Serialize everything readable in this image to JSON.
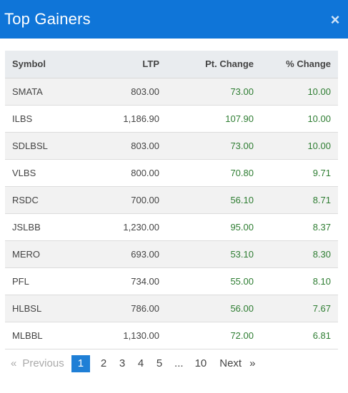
{
  "header": {
    "title": "Top Gainers",
    "close_glyph": "×"
  },
  "table": {
    "columns": [
      "Symbol",
      "LTP",
      "Pt. Change",
      "% Change"
    ],
    "rows": [
      {
        "symbol": "SMATA",
        "ltp": "803.00",
        "pt_change": "73.00",
        "pct_change": "10.00"
      },
      {
        "symbol": "ILBS",
        "ltp": "1,186.90",
        "pt_change": "107.90",
        "pct_change": "10.00"
      },
      {
        "symbol": "SDLBSL",
        "ltp": "803.00",
        "pt_change": "73.00",
        "pct_change": "10.00"
      },
      {
        "symbol": "VLBS",
        "ltp": "800.00",
        "pt_change": "70.80",
        "pct_change": "9.71"
      },
      {
        "symbol": "RSDC",
        "ltp": "700.00",
        "pt_change": "56.10",
        "pct_change": "8.71"
      },
      {
        "symbol": "JSLBB",
        "ltp": "1,230.00",
        "pt_change": "95.00",
        "pct_change": "8.37"
      },
      {
        "symbol": "MERO",
        "ltp": "693.00",
        "pt_change": "53.10",
        "pct_change": "8.30"
      },
      {
        "symbol": "PFL",
        "ltp": "734.00",
        "pt_change": "55.00",
        "pct_change": "8.10"
      },
      {
        "symbol": "HLBSL",
        "ltp": "786.00",
        "pt_change": "56.00",
        "pct_change": "7.67"
      },
      {
        "symbol": "MLBBL",
        "ltp": "1,130.00",
        "pt_change": "72.00",
        "pct_change": "6.81"
      }
    ]
  },
  "pagination": {
    "first_arrow": "«",
    "previous_label": "Previous",
    "pages": [
      "1",
      "2",
      "3",
      "4",
      "5"
    ],
    "ellipsis": "...",
    "last_page": "10",
    "next_label": "Next",
    "last_arrow": "»",
    "active_page": "1"
  },
  "colors": {
    "header_bg": "#0f75d8",
    "positive": "#2e7d32",
    "active_page_bg": "#1f7fd6"
  }
}
